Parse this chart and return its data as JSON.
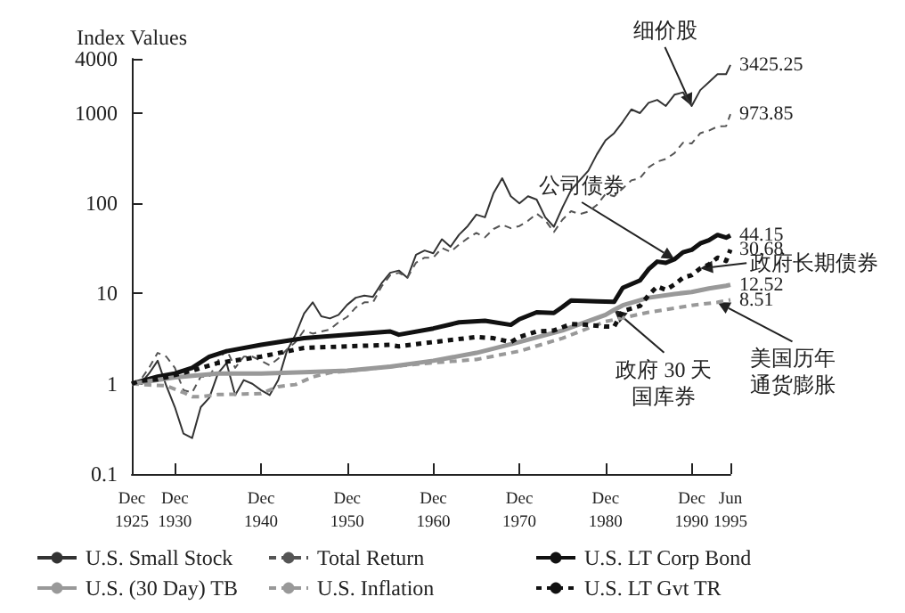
{
  "chart_data": {
    "type": "line",
    "ylabel": "Index Values",
    "log": "y",
    "marker": "none",
    "grid": false,
    "legend": "bottom",
    "xlim": [
      "1925-12",
      "1995-06"
    ],
    "xticks": [
      {
        "value": "1925-12",
        "label": "Dec 1925"
      },
      {
        "value": "1930-12",
        "label": "Dec 1930"
      },
      {
        "value": "1940-12",
        "label": "Dec 1940"
      },
      {
        "value": "1950-12",
        "label": "Dec 1950"
      },
      {
        "value": "1960-12",
        "label": "Dec 1960"
      },
      {
        "value": "1970-12",
        "label": "Dec 1970"
      },
      {
        "value": "1980-12",
        "label": "Dec 1980"
      },
      {
        "value": "1990-12",
        "label": "Dec 1990"
      },
      {
        "value": "1995-06",
        "label": "Jun 1995"
      }
    ],
    "ylim": [
      0.1,
      4000
    ],
    "yticks": [
      0.1,
      1,
      10,
      100,
      1000,
      4000
    ],
    "series": [
      {
        "name": "U.S. Small Stock",
        "color": "#333333",
        "line_style": "solid",
        "x": [
          "1925-12",
          "1926-12",
          "1927-12",
          "1928-12",
          "1929-12",
          "1930-12",
          "1931-12",
          "1932-12",
          "1933-12",
          "1934-12",
          "1935-12",
          "1936-12",
          "1937-12",
          "1938-12",
          "1939-12",
          "1940-12",
          "1941-12",
          "1942-12",
          "1943-12",
          "1944-12",
          "1945-12",
          "1946-12",
          "1947-12",
          "1948-12",
          "1949-12",
          "1950-12",
          "1951-12",
          "1952-12",
          "1953-12",
          "1954-12",
          "1955-12",
          "1956-12",
          "1957-12",
          "1958-12",
          "1959-12",
          "1960-12",
          "1961-12",
          "1962-12",
          "1963-12",
          "1964-12",
          "1965-12",
          "1966-12",
          "1967-12",
          "1968-12",
          "1969-12",
          "1970-12",
          "1971-12",
          "1972-12",
          "1973-12",
          "1974-12",
          "1975-12",
          "1976-12",
          "1977-12",
          "1978-12",
          "1979-12",
          "1980-12",
          "1981-12",
          "1982-12",
          "1983-12",
          "1984-12",
          "1985-12",
          "1986-12",
          "1987-12",
          "1988-12",
          "1989-12",
          "1990-12",
          "1991-12",
          "1992-12",
          "1993-12",
          "1994-12",
          "1995-06"
        ],
        "values": [
          1,
          1.0,
          1.3,
          1.8,
          0.95,
          0.55,
          0.28,
          0.25,
          0.55,
          0.7,
          1.3,
          1.7,
          0.75,
          1.1,
          1.0,
          0.85,
          0.75,
          1.1,
          2.3,
          3.5,
          6,
          8,
          5.6,
          5.3,
          5.8,
          7.5,
          9,
          9.5,
          9.2,
          13,
          17,
          18,
          15,
          27,
          30,
          28,
          40,
          33,
          45,
          56,
          75,
          70,
          130,
          190,
          120,
          100,
          120,
          110,
          70,
          55,
          90,
          140,
          180,
          230,
          350,
          500,
          600,
          800,
          1100,
          1000,
          1300,
          1400,
          1200,
          1600,
          1700,
          1200,
          1800,
          2200,
          2700,
          2700,
          3425.25
        ],
        "value_labels": [
          null,
          null,
          null,
          null,
          null,
          null,
          null,
          null,
          null,
          null,
          null,
          null,
          null,
          null,
          null,
          null,
          null,
          null,
          null,
          null,
          null,
          null,
          null,
          null,
          null,
          null,
          null,
          null,
          null,
          null,
          null,
          null,
          null,
          null,
          null,
          null,
          null,
          null,
          null,
          null,
          null,
          null,
          null,
          null,
          null,
          null,
          null,
          null,
          null,
          null,
          null,
          null,
          null,
          null,
          null,
          null,
          null,
          null,
          null,
          null,
          null,
          null,
          null,
          null,
          null,
          null,
          null,
          null,
          null,
          null,
          "3425.25"
        ]
      },
      {
        "name": "Total Return",
        "color": "#555555",
        "line_style": "dashed",
        "x": [
          "1925-12",
          "1926-12",
          "1927-12",
          "1928-12",
          "1929-12",
          "1930-12",
          "1931-12",
          "1932-12",
          "1933-12",
          "1934-12",
          "1935-12",
          "1936-12",
          "1937-12",
          "1938-12",
          "1939-12",
          "1940-12",
          "1941-12",
          "1942-12",
          "1943-12",
          "1944-12",
          "1945-12",
          "1946-12",
          "1947-12",
          "1948-12",
          "1949-12",
          "1950-12",
          "1951-12",
          "1952-12",
          "1953-12",
          "1954-12",
          "1955-12",
          "1956-12",
          "1957-12",
          "1958-12",
          "1959-12",
          "1960-12",
          "1961-12",
          "1962-12",
          "1963-12",
          "1964-12",
          "1965-12",
          "1966-12",
          "1967-12",
          "1968-12",
          "1969-12",
          "1970-12",
          "1971-12",
          "1972-12",
          "1973-12",
          "1974-12",
          "1975-12",
          "1976-12",
          "1977-12",
          "1978-12",
          "1979-12",
          "1980-12",
          "1981-12",
          "1982-12",
          "1983-12",
          "1984-12",
          "1985-12",
          "1986-12",
          "1987-12",
          "1988-12",
          "1989-12",
          "1990-12",
          "1991-12",
          "1992-12",
          "1993-12",
          "1994-12",
          "1995-06"
        ],
        "values": [
          1,
          1.1,
          1.5,
          2.2,
          2.0,
          1.5,
          0.85,
          0.8,
          1.2,
          1.2,
          1.8,
          2.4,
          1.5,
          2.0,
          2.0,
          1.8,
          1.6,
          1.9,
          2.4,
          2.9,
          3.9,
          3.6,
          3.8,
          4.0,
          4.8,
          5.5,
          7,
          8,
          8,
          12,
          16,
          17,
          15,
          22,
          25,
          25,
          32,
          29,
          35,
          41,
          47,
          42,
          52,
          58,
          53,
          56,
          64,
          77,
          65,
          48,
          66,
          82,
          76,
          81,
          96,
          127,
          120,
          146,
          180,
          190,
          250,
          290,
          310,
          360,
          470,
          460,
          600,
          640,
          710,
          720,
          973.85
        ],
        "value_labels": [
          null,
          null,
          null,
          null,
          null,
          null,
          null,
          null,
          null,
          null,
          null,
          null,
          null,
          null,
          null,
          null,
          null,
          null,
          null,
          null,
          null,
          null,
          null,
          null,
          null,
          null,
          null,
          null,
          null,
          null,
          null,
          null,
          null,
          null,
          null,
          null,
          null,
          null,
          null,
          null,
          null,
          null,
          null,
          null,
          null,
          null,
          null,
          null,
          null,
          null,
          null,
          null,
          null,
          null,
          null,
          null,
          null,
          null,
          null,
          null,
          null,
          null,
          null,
          null,
          null,
          null,
          null,
          null,
          null,
          null,
          "973.85"
        ]
      },
      {
        "name": "U.S. LT Corp Bond",
        "color": "#111111",
        "line_style": "solid",
        "x": [
          "1925-12",
          "1928-12",
          "1930-12",
          "1932-12",
          "1934-12",
          "1936-12",
          "1940-12",
          "1945-12",
          "1950-12",
          "1955-12",
          "1956-12",
          "1960-12",
          "1963-12",
          "1966-12",
          "1969-12",
          "1970-12",
          "1972-12",
          "1974-12",
          "1975-12",
          "1976-12",
          "1979-12",
          "1981-12",
          "1982-12",
          "1984-12",
          "1985-12",
          "1986-12",
          "1987-12",
          "1988-12",
          "1989-12",
          "1990-12",
          "1991-12",
          "1992-12",
          "1993-12",
          "1994-12",
          "1995-06"
        ],
        "values": [
          1,
          1.2,
          1.3,
          1.5,
          2.0,
          2.3,
          2.7,
          3.2,
          3.5,
          3.8,
          3.5,
          4.1,
          4.8,
          5.0,
          4.5,
          5.2,
          6.2,
          6.1,
          7.1,
          8.4,
          8.2,
          8.1,
          11.6,
          14,
          18.6,
          22.6,
          21.9,
          24,
          28.7,
          30.5,
          36,
          39,
          44.6,
          41.7,
          44.15
        ],
        "value_labels": [
          null,
          null,
          null,
          null,
          null,
          null,
          null,
          null,
          null,
          null,
          null,
          null,
          null,
          null,
          null,
          null,
          null,
          null,
          null,
          null,
          null,
          null,
          null,
          null,
          null,
          null,
          null,
          null,
          null,
          null,
          null,
          null,
          null,
          null,
          "44.15"
        ]
      },
      {
        "name": "U.S. (30 Day) TB",
        "color": "#999999",
        "line_style": "solid",
        "x": [
          "1925-12",
          "1930-12",
          "1935-12",
          "1940-12",
          "1945-12",
          "1950-12",
          "1955-12",
          "1960-12",
          "1965-12",
          "1970-12",
          "1975-12",
          "1980-12",
          "1981-12",
          "1982-12",
          "1985-12",
          "1988-12",
          "1990-12",
          "1992-12",
          "1994-12",
          "1995-06"
        ],
        "values": [
          1,
          1.18,
          1.3,
          1.3,
          1.34,
          1.4,
          1.55,
          1.8,
          2.2,
          2.9,
          3.9,
          5.8,
          6.6,
          7.4,
          9.0,
          9.9,
          10.4,
          11.4,
          12.2,
          12.52
        ],
        "value_labels": [
          null,
          null,
          null,
          null,
          null,
          null,
          null,
          null,
          null,
          null,
          null,
          null,
          null,
          null,
          null,
          null,
          null,
          null,
          null,
          "12.52"
        ]
      },
      {
        "name": "U.S. Inflation",
        "color": "#999999",
        "line_style": "dashed",
        "x": [
          "1925-12",
          "1927-12",
          "1929-12",
          "1931-12",
          "1932-12",
          "1933-12",
          "1935-12",
          "1938-12",
          "1940-12",
          "1942-12",
          "1944-12",
          "1946-12",
          "1948-12",
          "1950-12",
          "1955-12",
          "1960-12",
          "1965-12",
          "1970-12",
          "1975-12",
          "1980-12",
          "1985-12",
          "1990-12",
          "1993-12",
          "1995-06"
        ],
        "values": [
          1,
          0.97,
          0.95,
          0.8,
          0.72,
          0.72,
          0.76,
          0.77,
          0.78,
          0.93,
          0.98,
          1.19,
          1.33,
          1.38,
          1.55,
          1.71,
          1.86,
          2.3,
          3.2,
          4.9,
          6.2,
          7.4,
          8.0,
          8.51
        ],
        "value_labels": [
          null,
          null,
          null,
          null,
          null,
          null,
          null,
          null,
          null,
          null,
          null,
          null,
          null,
          null,
          null,
          null,
          null,
          null,
          null,
          null,
          null,
          null,
          null,
          "8.51"
        ]
      },
      {
        "name": "U.S. LT Gvt TR",
        "color": "#111111",
        "line_style": "dotted",
        "x": [
          "1925-12",
          "1926-12",
          "1928-12",
          "1930-12",
          "1932-12",
          "1935-12",
          "1940-12",
          "1945-12",
          "1950-12",
          "1955-12",
          "1956-12",
          "1960-12",
          "1965-12",
          "1967-12",
          "1969-12",
          "1970-12",
          "1972-12",
          "1974-12",
          "1976-12",
          "1978-12",
          "1980-12",
          "1981-12",
          "1982-12",
          "1984-12",
          "1985-12",
          "1986-12",
          "1987-12",
          "1988-12",
          "1989-12",
          "1990-12",
          "1991-12",
          "1992-12",
          "1993-12",
          "1994-12",
          "1995-06"
        ],
        "values": [
          1,
          1.08,
          1.12,
          1.25,
          1.4,
          1.7,
          2.0,
          2.5,
          2.6,
          2.7,
          2.6,
          2.9,
          3.3,
          3.2,
          2.9,
          3.3,
          3.8,
          3.9,
          4.6,
          4.5,
          4.3,
          4.3,
          6.4,
          7.3,
          9.6,
          12,
          11,
          12.6,
          15,
          16,
          19,
          21,
          25,
          23,
          30.68
        ],
        "value_labels": [
          null,
          null,
          null,
          null,
          null,
          null,
          null,
          null,
          null,
          null,
          null,
          null,
          null,
          null,
          null,
          null,
          null,
          null,
          null,
          null,
          null,
          null,
          null,
          null,
          null,
          null,
          null,
          null,
          null,
          null,
          null,
          null,
          null,
          null,
          "30.68"
        ]
      }
    ],
    "annotations": [
      {
        "text": "细价股",
        "x": "1990-12",
        "y": 1200
      },
      {
        "text": "公司债券",
        "x": "1988-12",
        "y": 24
      },
      {
        "text": "政府长期债券",
        "x": "1991-12",
        "y": 19
      },
      {
        "text": "政府 30 天国库券",
        "x": "1981-12",
        "y": 6.6
      },
      {
        "text": "美国历年通货膨胀",
        "x": "1993-12",
        "y": 8.0
      }
    ]
  }
}
